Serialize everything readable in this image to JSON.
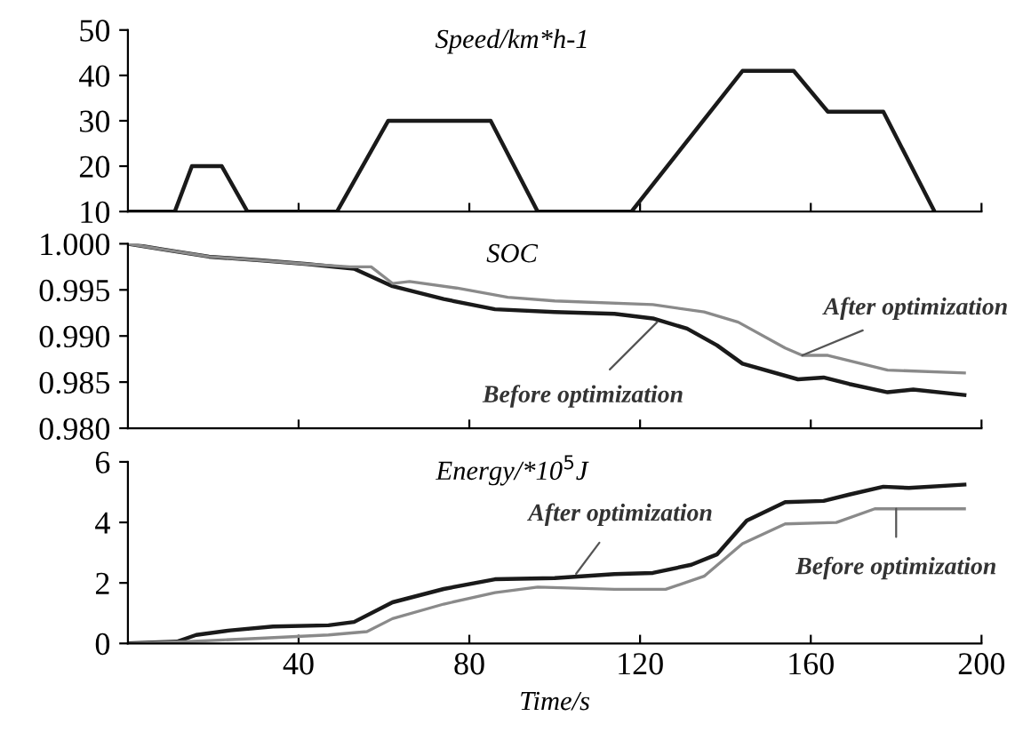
{
  "chart_data": [
    {
      "type": "line",
      "title": "Speed/km*h-1",
      "xlim": [
        0,
        200
      ],
      "xticks": [
        40,
        80,
        120,
        160,
        200
      ],
      "ylim": [
        10,
        50
      ],
      "yticks": [
        10,
        20,
        30,
        40,
        50
      ],
      "tick_labels": "y",
      "grid": false,
      "legend": false,
      "series": [
        {
          "color": "#1a1a1a",
          "x": [
            0,
            11,
            15,
            22,
            28,
            49,
            61,
            85,
            96,
            118,
            144,
            156,
            164,
            177,
            189
          ],
          "values": [
            10,
            10,
            20,
            20,
            10,
            10,
            30,
            30,
            10,
            10,
            41,
            41,
            32,
            32,
            10
          ]
        }
      ]
    },
    {
      "type": "line",
      "title": "SOC",
      "xlim": [
        0,
        200
      ],
      "xticks": [
        40,
        80,
        120,
        160,
        200
      ],
      "ylim": [
        0.98,
        1.0
      ],
      "yticks": [
        {
          "value": 0.98,
          "label": "0.980"
        },
        {
          "value": 0.985,
          "label": "0.985"
        },
        {
          "value": 0.99,
          "label": "0.990"
        },
        {
          "value": 0.995,
          "label": "0.995"
        },
        {
          "value": 1.0,
          "label": "1.000"
        }
      ],
      "tick_labels": "y",
      "grid": false,
      "legend": false,
      "series": [
        {
          "color": "#1a1a1a",
          "x": [
            0,
            8,
            19,
            31,
            42,
            53,
            62,
            74,
            86,
            100,
            114,
            123,
            131,
            138,
            144,
            157,
            163,
            169,
            178,
            184,
            196
          ],
          "values": [
            1.0,
            0.9994,
            0.9986,
            0.9982,
            0.9978,
            0.9973,
            0.9954,
            0.994,
            0.9929,
            0.9926,
            0.9924,
            0.9919,
            0.9908,
            0.989,
            0.987,
            0.9853,
            0.9855,
            0.9848,
            0.9839,
            0.9842,
            0.9836
          ]
        },
        {
          "color": "#8a8a8a",
          "x": [
            0,
            8,
            19,
            31,
            42,
            52,
            57,
            62,
            66,
            77,
            89,
            100,
            123,
            135,
            143,
            154,
            158,
            164,
            178,
            196
          ],
          "values": [
            1.0,
            0.9994,
            0.9986,
            0.9982,
            0.9978,
            0.9975,
            0.9975,
            0.9957,
            0.9959,
            0.9952,
            0.9942,
            0.9938,
            0.9934,
            0.9926,
            0.9915,
            0.9887,
            0.9879,
            0.9879,
            0.9863,
            0.986
          ]
        }
      ],
      "annotations": [
        {
          "text": "After optimization",
          "x": 158,
          "y": 0.9879
        },
        {
          "text": "Before optimization",
          "x": 124,
          "y": 0.9915
        }
      ]
    },
    {
      "type": "line",
      "title": "Energy/*10$^{5}$J",
      "xlabel": "Time/s",
      "xlim": [
        0,
        200
      ],
      "xticks": [
        40,
        80,
        120,
        160,
        200
      ],
      "ylim": [
        0,
        6
      ],
      "yticks": [
        0,
        2,
        4,
        6
      ],
      "grid": false,
      "legend": false,
      "series": [
        {
          "color": "#1a1a1a",
          "x": [
            0,
            11.5,
            16,
            24,
            34,
            47,
            53,
            62,
            74,
            86,
            100,
            114,
            123,
            132,
            138,
            145,
            154,
            163,
            169,
            177,
            183,
            196
          ],
          "values": [
            0,
            0.06,
            0.28,
            0.43,
            0.56,
            0.6,
            0.71,
            1.36,
            1.8,
            2.12,
            2.16,
            2.29,
            2.33,
            2.6,
            2.94,
            4.06,
            4.67,
            4.71,
            4.92,
            5.18,
            5.14,
            5.25
          ]
        },
        {
          "color": "#8a8a8a",
          "x": [
            0,
            14,
            31,
            47,
            56,
            62,
            74,
            86,
            96,
            114,
            126,
            135,
            144,
            154,
            166,
            175,
            196
          ],
          "values": [
            0,
            0.06,
            0.17,
            0.28,
            0.39,
            0.82,
            1.3,
            1.68,
            1.86,
            1.79,
            1.79,
            2.22,
            3.3,
            3.95,
            4.0,
            4.45,
            4.45
          ]
        }
      ],
      "annotations": [
        {
          "text": "After optimization",
          "x": 105,
          "y": 2.3
        },
        {
          "text": "Before optimization",
          "x": 180,
          "y": 4.45
        }
      ]
    }
  ]
}
